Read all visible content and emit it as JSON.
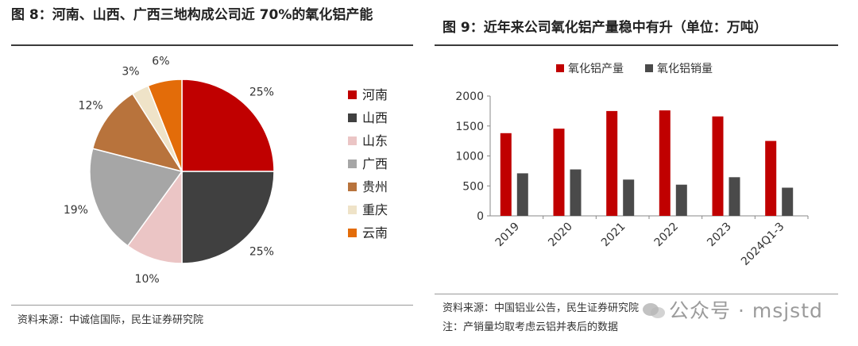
{
  "left": {
    "title": "图 8：河南、山西、广西三地构成公司近 70%的氧化铝产能",
    "source": "资料来源：中诚信国际，民生证券研究院"
  },
  "right": {
    "title": "图 9：近年来公司氧化铝产量稳中有升（单位：万吨）",
    "source": "资料来源：中国铝业公告，民生证券研究院",
    "note": "注：产销量均取考虑云铝并表后的数据"
  },
  "watermark": "公众号 · msjstd",
  "chart_data": [
    {
      "type": "pie",
      "slices": [
        {
          "label": "河南",
          "value": 25,
          "label_text": "25%",
          "color": "#c00000"
        },
        {
          "label": "山西",
          "value": 25,
          "label_text": "25%",
          "color": "#404040"
        },
        {
          "label": "山东",
          "value": 10,
          "label_text": "10%",
          "color": "#ebc5c5"
        },
        {
          "label": "广西",
          "value": 19,
          "label_text": "19%",
          "color": "#a6a6a6"
        },
        {
          "label": "贵州",
          "value": 12,
          "label_text": "12%",
          "color": "#b8733c"
        },
        {
          "label": "重庆",
          "value": 3,
          "label_text": "3%",
          "color": "#efe3c8"
        },
        {
          "label": "云南",
          "value": 6,
          "label_text": "6%",
          "color": "#e36c09"
        }
      ],
      "legend_position": "right"
    },
    {
      "type": "bar",
      "categories": [
        "2019",
        "2020",
        "2021",
        "2022",
        "2023",
        "2024Q1-3"
      ],
      "series": [
        {
          "name": "氧化铝产量",
          "color": "#c00000",
          "values": [
            1380,
            1455,
            1750,
            1760,
            1660,
            1250
          ]
        },
        {
          "name": "氧化铝销量",
          "color": "#4a4a4a",
          "values": [
            710,
            775,
            605,
            520,
            645,
            470
          ]
        }
      ],
      "ylim": [
        0,
        2000
      ],
      "yticks": [
        0,
        500,
        1000,
        1500,
        2000
      ],
      "legend_position": "top",
      "grid": false
    }
  ]
}
